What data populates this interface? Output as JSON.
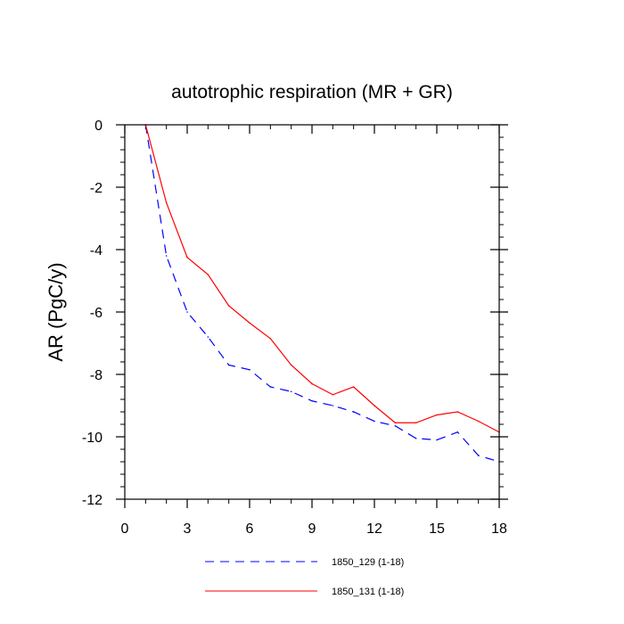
{
  "chart_data": {
    "type": "line",
    "title": "autotrophic respiration (MR + GR)",
    "xlabel": "",
    "ylabel": "AR  (PgC/y)",
    "xlim": [
      0,
      18
    ],
    "ylim": [
      -12,
      0
    ],
    "xticks": [
      0,
      3,
      6,
      9,
      12,
      15,
      18
    ],
    "yticks": [
      0,
      -2,
      -4,
      -6,
      -8,
      -10,
      -12
    ],
    "x_minor_step": 1,
    "y_minor_step": 0.4,
    "grid": false,
    "legend_position": "bottom-center",
    "x": [
      1,
      2,
      3,
      4,
      5,
      6,
      7,
      8,
      9,
      10,
      11,
      12,
      13,
      14,
      15,
      16,
      17,
      18
    ],
    "series": [
      {
        "name": "1850_129 (1-18)",
        "color": "#0000ff",
        "style": "dashed",
        "values": [
          0,
          -4.2,
          -6.0,
          -6.8,
          -7.7,
          -7.85,
          -8.4,
          -8.55,
          -8.85,
          -9.0,
          -9.2,
          -9.5,
          -9.65,
          -10.05,
          -10.1,
          -9.85,
          -10.6,
          -10.8
        ]
      },
      {
        "name": "1850_131 (1-18)",
        "color": "#ff0000",
        "style": "solid",
        "values": [
          0,
          -2.5,
          -4.25,
          -4.8,
          -5.8,
          -6.35,
          -6.85,
          -7.7,
          -8.3,
          -8.65,
          -8.4,
          -9.0,
          -9.55,
          -9.55,
          -9.3,
          -9.2,
          -9.5,
          -9.85
        ]
      }
    ]
  }
}
